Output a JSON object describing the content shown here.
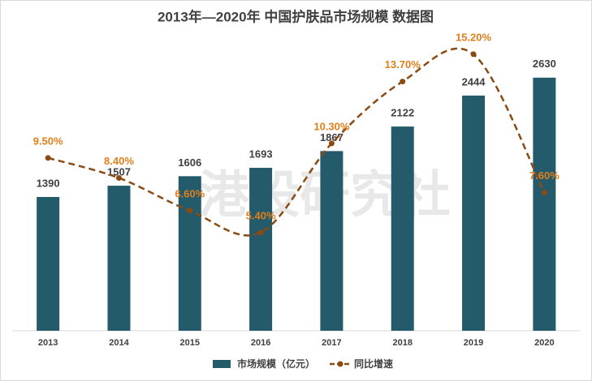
{
  "chart_data": {
    "type": "bar-line",
    "title": "2013年—2020年 中国护肤品市场规模 数据图",
    "watermark": "港股研究社",
    "categories": [
      "2013",
      "2014",
      "2015",
      "2016",
      "2017",
      "2018",
      "2019",
      "2020"
    ],
    "series": [
      {
        "name": "市场规模（亿元）",
        "type": "bar",
        "color": "#245b6b",
        "values": [
          1390,
          1507,
          1606,
          1693,
          1867,
          2122,
          2444,
          2630
        ]
      },
      {
        "name": "同比增速",
        "type": "line",
        "axis": "y2",
        "color": "#8a4a12",
        "label_color": "#e07f1a",
        "values": [
          9.5,
          8.4,
          6.6,
          5.4,
          10.3,
          13.7,
          15.2,
          7.6
        ],
        "value_labels": [
          "9.50%",
          "8.40%",
          "6.60%",
          "5.40%",
          "10.30%",
          "13.70%",
          "15.20%",
          "7.60%"
        ]
      }
    ],
    "ylim": [
      0,
      3100
    ],
    "y2lim": [
      0,
      16.4
    ]
  }
}
